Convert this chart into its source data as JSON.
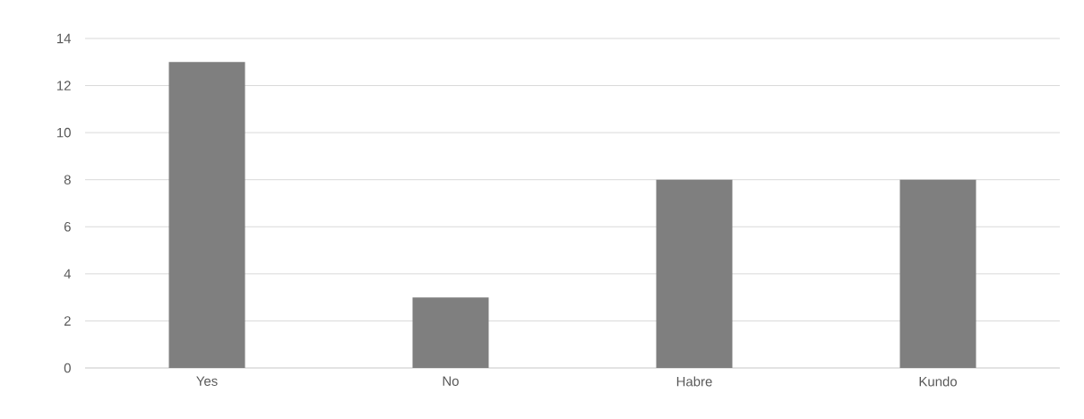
{
  "chart_data": {
    "type": "bar",
    "categories": [
      "Yes",
      "No",
      "Habre",
      "Kundo"
    ],
    "values": [
      13,
      3,
      8,
      8
    ],
    "color": "#7f7f7f",
    "ylim": [
      0,
      14
    ],
    "yticks": [
      0,
      2,
      4,
      6,
      8,
      10,
      12,
      14
    ],
    "grid": "y"
  }
}
